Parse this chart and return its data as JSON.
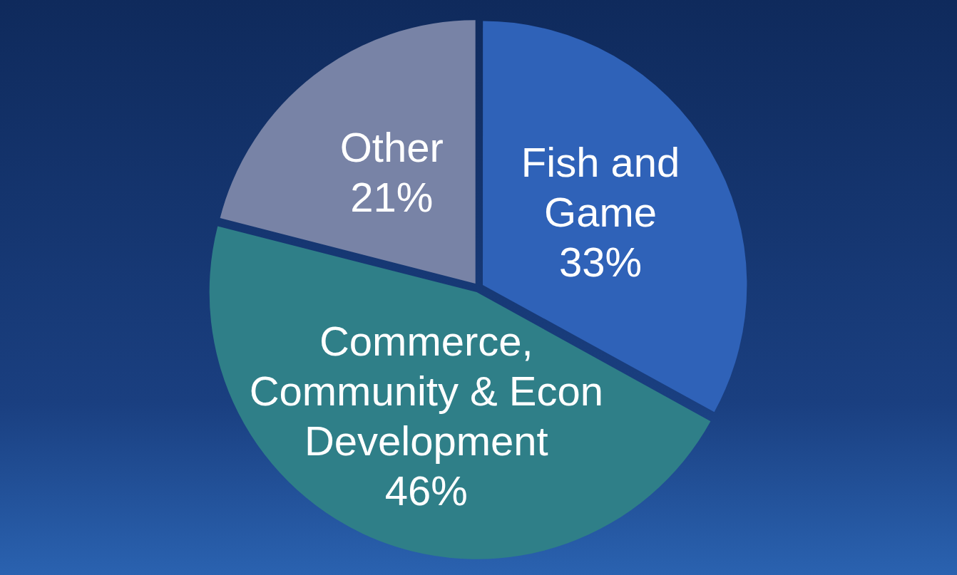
{
  "chart_data": {
    "type": "pie",
    "categories": [
      "Fish and Game",
      "Commerce, Community & Econ Development",
      "Other"
    ],
    "values": [
      33,
      46,
      21
    ],
    "colors": [
      "#2f62b8",
      "#2f7f88",
      "#7883a6"
    ],
    "value_labels": [
      "33%",
      "46%",
      "21%"
    ],
    "legend": false
  }
}
